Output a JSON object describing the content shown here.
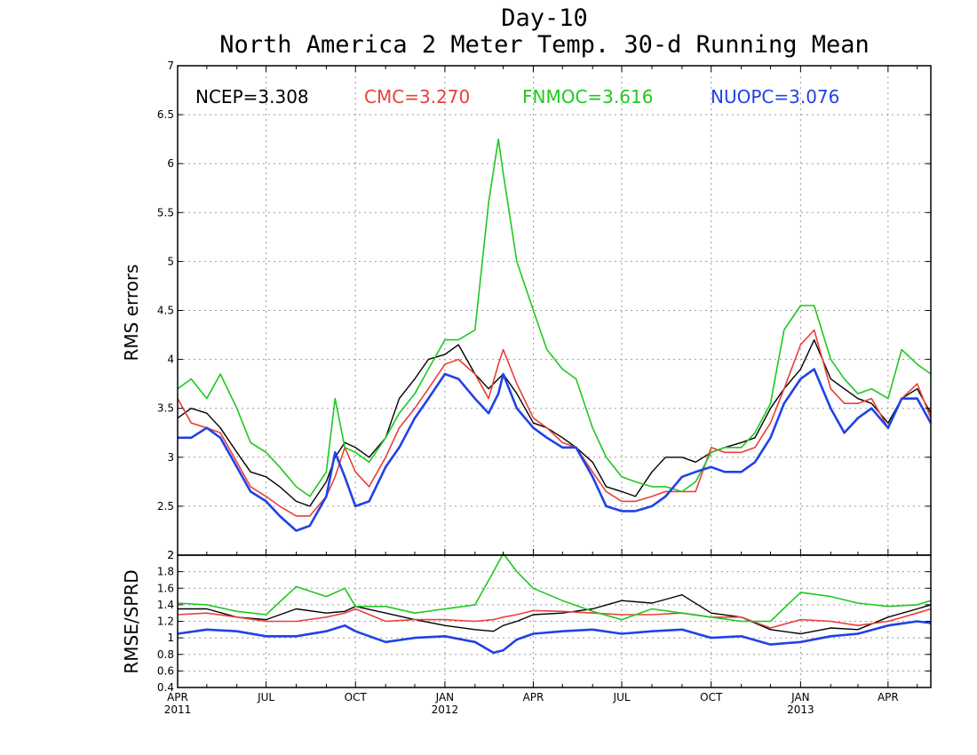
{
  "chart_data": [
    {
      "type": "line",
      "title": "Day-10",
      "subtitle": "North America 2 Meter Temp. 30-d Running Mean",
      "ylabel": "RMS errors",
      "ylim": [
        2,
        7
      ],
      "yticks": [
        2,
        2.5,
        3,
        3.5,
        4,
        4.5,
        5,
        5.5,
        6,
        6.5,
        7
      ],
      "ytick_labels": [
        "2",
        "2.5",
        "3",
        "3.5",
        "4",
        "4.5",
        "5",
        "5.5",
        "6",
        "6.5",
        "7"
      ],
      "grid": true,
      "legend_position": "top",
      "x_start": "2011-04-01",
      "x_end": "2013-05-15",
      "x": [
        "2011-04-01",
        "2011-04-15",
        "2011-05-01",
        "2011-05-15",
        "2011-06-01",
        "2011-06-15",
        "2011-07-01",
        "2011-07-15",
        "2011-08-01",
        "2011-08-15",
        "2011-09-01",
        "2011-09-10",
        "2011-09-20",
        "2011-10-01",
        "2011-10-15",
        "2011-11-01",
        "2011-11-15",
        "2011-12-01",
        "2011-12-15",
        "2012-01-01",
        "2012-01-15",
        "2012-02-01",
        "2012-02-15",
        "2012-02-25",
        "2012-03-01",
        "2012-03-15",
        "2012-04-01",
        "2012-04-15",
        "2012-05-01",
        "2012-05-15",
        "2012-06-01",
        "2012-06-15",
        "2012-07-01",
        "2012-07-15",
        "2012-08-01",
        "2012-08-15",
        "2012-09-01",
        "2012-09-15",
        "2012-10-01",
        "2012-10-15",
        "2012-11-01",
        "2012-11-15",
        "2012-12-01",
        "2012-12-15",
        "2013-01-01",
        "2013-01-15",
        "2013-02-01",
        "2013-02-15",
        "2013-03-01",
        "2013-03-15",
        "2013-04-01",
        "2013-04-15",
        "2013-05-01",
        "2013-05-15"
      ],
      "series": [
        {
          "name": "NCEP",
          "mean_label": "NCEP=3.308",
          "color": "#000000",
          "values": [
            3.4,
            3.5,
            3.45,
            3.3,
            3.05,
            2.85,
            2.8,
            2.7,
            2.55,
            2.5,
            2.75,
            3.0,
            3.15,
            3.1,
            3.0,
            3.2,
            3.6,
            3.8,
            4.0,
            4.05,
            4.15,
            3.85,
            3.7,
            3.8,
            3.85,
            3.65,
            3.35,
            3.3,
            3.2,
            3.1,
            2.95,
            2.7,
            2.65,
            2.6,
            2.85,
            3.0,
            3.0,
            2.95,
            3.05,
            3.1,
            3.15,
            3.2,
            3.5,
            3.7,
            3.9,
            4.2,
            3.8,
            3.7,
            3.6,
            3.55,
            3.35,
            3.6,
            3.7,
            3.45
          ]
        },
        {
          "name": "CMC",
          "mean_label": "CMC=3.270",
          "color": "#e8403a",
          "values": [
            3.6,
            3.35,
            3.3,
            3.25,
            2.95,
            2.7,
            2.6,
            2.5,
            2.4,
            2.4,
            2.6,
            2.8,
            3.1,
            2.85,
            2.7,
            3.0,
            3.3,
            3.5,
            3.7,
            3.95,
            4.0,
            3.85,
            3.6,
            3.95,
            4.1,
            3.75,
            3.4,
            3.3,
            3.15,
            3.1,
            2.85,
            2.65,
            2.55,
            2.55,
            2.6,
            2.65,
            2.65,
            2.65,
            3.1,
            3.05,
            3.05,
            3.1,
            3.35,
            3.7,
            4.15,
            4.3,
            3.7,
            3.55,
            3.55,
            3.6,
            3.3,
            3.6,
            3.75,
            3.4
          ]
        },
        {
          "name": "FNMOC",
          "mean_label": "FNMOC=3.616",
          "color": "#1ec81e",
          "values": [
            3.7,
            3.8,
            3.6,
            3.85,
            3.5,
            3.15,
            3.05,
            2.9,
            2.7,
            2.6,
            2.85,
            3.6,
            3.1,
            3.05,
            2.95,
            3.2,
            3.45,
            3.65,
            3.9,
            4.2,
            4.2,
            4.3,
            5.6,
            6.25,
            5.9,
            5.0,
            4.5,
            4.1,
            3.9,
            3.8,
            3.3,
            3.0,
            2.8,
            2.75,
            2.7,
            2.7,
            2.65,
            2.75,
            3.05,
            3.1,
            3.1,
            3.25,
            3.55,
            4.3,
            4.55,
            4.55,
            4.0,
            3.8,
            3.65,
            3.7,
            3.6,
            4.1,
            3.95,
            3.85
          ]
        },
        {
          "name": "NUOPC",
          "mean_label": "NUOPC=3.076",
          "color": "#2042e6",
          "values": [
            3.2,
            3.2,
            3.3,
            3.2,
            2.9,
            2.65,
            2.55,
            2.4,
            2.25,
            2.3,
            2.6,
            3.05,
            2.8,
            2.5,
            2.55,
            2.9,
            3.1,
            3.4,
            3.6,
            3.85,
            3.8,
            3.6,
            3.45,
            3.65,
            3.85,
            3.5,
            3.3,
            3.2,
            3.1,
            3.1,
            2.8,
            2.5,
            2.45,
            2.45,
            2.5,
            2.6,
            2.8,
            2.85,
            2.9,
            2.85,
            2.85,
            2.95,
            3.2,
            3.55,
            3.8,
            3.9,
            3.5,
            3.25,
            3.4,
            3.5,
            3.3,
            3.6,
            3.6,
            3.35
          ]
        }
      ]
    },
    {
      "type": "line",
      "ylabel": "RMSE/SPRD",
      "ylim": [
        0.4,
        2
      ],
      "yticks": [
        0.4,
        0.6,
        0.8,
        1,
        1.2,
        1.4,
        1.6,
        1.8,
        2
      ],
      "ytick_labels": [
        "0.4",
        "0.6",
        "0.8",
        "1",
        "1.2",
        "1.4",
        "1.6",
        "1.8",
        "2"
      ],
      "grid": true,
      "xtick_labels": [
        {
          "date": "2011-04-01",
          "month": "APR",
          "year": "2011"
        },
        {
          "date": "2011-07-01",
          "month": "JUL",
          "year": ""
        },
        {
          "date": "2011-10-01",
          "month": "OCT",
          "year": ""
        },
        {
          "date": "2012-01-01",
          "month": "JAN",
          "year": "2012"
        },
        {
          "date": "2012-04-01",
          "month": "APR",
          "year": ""
        },
        {
          "date": "2012-07-01",
          "month": "JUL",
          "year": ""
        },
        {
          "date": "2012-10-01",
          "month": "OCT",
          "year": ""
        },
        {
          "date": "2013-01-01",
          "month": "JAN",
          "year": "2013"
        },
        {
          "date": "2013-04-01",
          "month": "APR",
          "year": ""
        }
      ],
      "x": [
        "2011-04-01",
        "2011-05-01",
        "2011-06-01",
        "2011-07-01",
        "2011-08-01",
        "2011-09-01",
        "2011-09-20",
        "2011-10-01",
        "2011-11-01",
        "2011-12-01",
        "2012-01-01",
        "2012-02-01",
        "2012-02-20",
        "2012-03-01",
        "2012-03-15",
        "2012-04-01",
        "2012-05-01",
        "2012-06-01",
        "2012-07-01",
        "2012-08-01",
        "2012-09-01",
        "2012-10-01",
        "2012-11-01",
        "2012-12-01",
        "2013-01-01",
        "2013-02-01",
        "2013-03-01",
        "2013-04-01",
        "2013-05-01",
        "2013-05-15"
      ],
      "series": [
        {
          "name": "NCEP",
          "color": "#000000",
          "values": [
            1.35,
            1.35,
            1.25,
            1.22,
            1.35,
            1.3,
            1.32,
            1.38,
            1.3,
            1.22,
            1.15,
            1.1,
            1.08,
            1.15,
            1.2,
            1.28,
            1.3,
            1.35,
            1.45,
            1.42,
            1.52,
            1.3,
            1.25,
            1.1,
            1.05,
            1.12,
            1.1,
            1.25,
            1.35,
            1.4
          ]
        },
        {
          "name": "CMC",
          "color": "#e8403a",
          "values": [
            1.28,
            1.3,
            1.25,
            1.2,
            1.2,
            1.25,
            1.3,
            1.35,
            1.2,
            1.22,
            1.22,
            1.2,
            1.22,
            1.25,
            1.28,
            1.33,
            1.32,
            1.3,
            1.28,
            1.28,
            1.3,
            1.25,
            1.25,
            1.12,
            1.22,
            1.2,
            1.15,
            1.2,
            1.3,
            1.35
          ]
        },
        {
          "name": "FNMOC",
          "color": "#1ec81e",
          "values": [
            1.42,
            1.4,
            1.32,
            1.28,
            1.62,
            1.5,
            1.6,
            1.38,
            1.38,
            1.3,
            1.35,
            1.4,
            1.8,
            2.02,
            1.8,
            1.6,
            1.45,
            1.32,
            1.22,
            1.35,
            1.3,
            1.25,
            1.2,
            1.2,
            1.55,
            1.5,
            1.42,
            1.38,
            1.4,
            1.45
          ]
        },
        {
          "name": "NUOPC",
          "color": "#2042e6",
          "values": [
            1.05,
            1.1,
            1.08,
            1.02,
            1.02,
            1.08,
            1.15,
            1.08,
            0.95,
            1.0,
            1.02,
            0.95,
            0.82,
            0.85,
            0.98,
            1.05,
            1.08,
            1.1,
            1.05,
            1.08,
            1.1,
            1.0,
            1.02,
            0.92,
            0.95,
            1.02,
            1.05,
            1.15,
            1.2,
            1.18
          ]
        }
      ]
    }
  ]
}
